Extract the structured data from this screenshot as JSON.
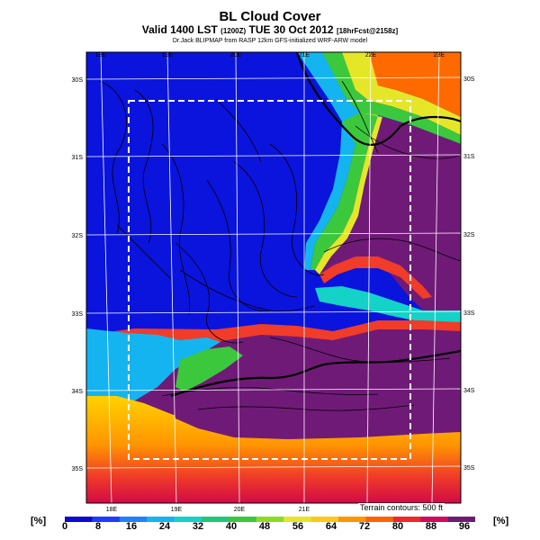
{
  "header": {
    "title": "BL Cloud Cover",
    "subtitle_main": "Valid 1400 LST",
    "subtitle_code": "(1200Z)",
    "subtitle_date": "TUE 30 Oct 2012",
    "subtitle_run": "[18hrFcst@2158z]",
    "credit": "Dr.Jack BLIPMAP from RASP 12km GFS-initialized WRF-ARW model"
  },
  "map": {
    "lon_labels_top": [
      "18E",
      "19E",
      "20E",
      "21E",
      "22E",
      "23E"
    ],
    "lon_labels_bottom": [
      "18E",
      "19E",
      "20E",
      "21E"
    ],
    "lat_labels_left": [
      "30S",
      "31S",
      "32S",
      "33S",
      "34S",
      "35S"
    ],
    "lat_labels_right": [
      "30S",
      "31S",
      "32S",
      "33S",
      "34S",
      "35S"
    ],
    "terrain_note": "Terrain contours: 500 ft"
  },
  "colorbar": {
    "unit_left": "[%]",
    "unit_right": "[%]",
    "ticks": [
      "0",
      "8",
      "16",
      "24",
      "32",
      "40",
      "48",
      "56",
      "64",
      "72",
      "80",
      "88",
      "96"
    ],
    "colors": [
      "#0a0ad0",
      "#1e3cff",
      "#1e82ff",
      "#14b4f0",
      "#14d2c8",
      "#1ec878",
      "#3cc83c",
      "#8cdc1e",
      "#e6e628",
      "#ffc814",
      "#ff9600",
      "#ff6400",
      "#f02828",
      "#d20a5a",
      "#701a78"
    ]
  }
}
